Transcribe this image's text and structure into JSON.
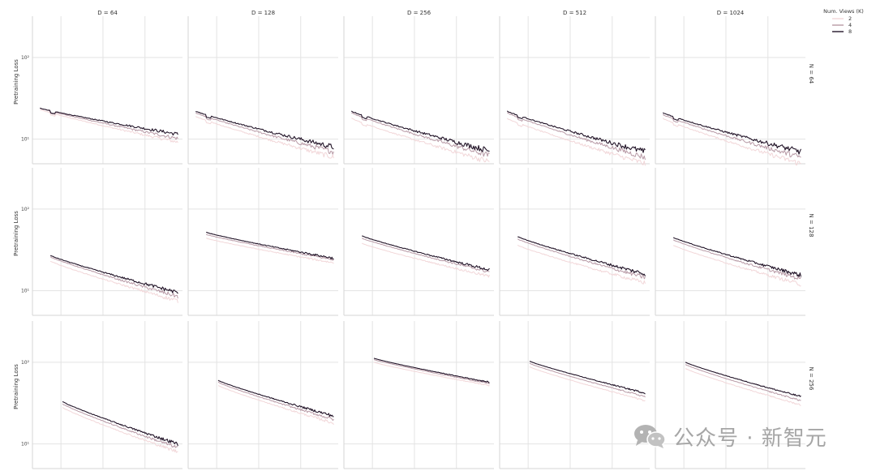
{
  "chart_data": {
    "type": "line",
    "grid": "small multiples",
    "column_titles": [
      "D = 64",
      "D = 128",
      "D = 256",
      "D = 512",
      "D = 1024"
    ],
    "row_titles": [
      "N = 64",
      "N = 128",
      "N = 256"
    ],
    "ylabel": "Pretraining Loss",
    "yscale": "log",
    "ytick_labels": [
      "10¹",
      "10²"
    ],
    "ylim": [
      5,
      320
    ],
    "xlim": [
      0,
      1
    ],
    "legend": {
      "title": "Num. Views (K)",
      "placement": "top-right",
      "entries": [
        {
          "label": "2",
          "color": "#f2d7d9"
        },
        {
          "label": "4",
          "color": "#b89aa6"
        },
        {
          "label": "8",
          "color": "#231529"
        }
      ]
    },
    "panels": [
      {
        "row": 0,
        "col": 0,
        "x_start": 0.05,
        "x_end": 0.97,
        "start": {
          "2": 23,
          "4": 24,
          "8": 24
        },
        "end": {
          "2": 9.2,
          "4": 10.2,
          "8": 11.5
        },
        "noise": 0.06
      },
      {
        "row": 0,
        "col": 1,
        "x_start": 0.05,
        "x_end": 0.97,
        "start": {
          "2": 19,
          "4": 21,
          "8": 22
        },
        "end": {
          "2": 6.0,
          "4": 7.0,
          "8": 8.0
        },
        "noise": 0.09
      },
      {
        "row": 0,
        "col": 2,
        "x_start": 0.05,
        "x_end": 0.97,
        "start": {
          "2": 18,
          "4": 21,
          "8": 22
        },
        "end": {
          "2": 5.3,
          "4": 6.3,
          "8": 7.2
        },
        "noise": 0.1
      },
      {
        "row": 0,
        "col": 3,
        "x_start": 0.05,
        "x_end": 0.97,
        "start": {
          "2": 18,
          "4": 21,
          "8": 22
        },
        "end": {
          "2": 5.0,
          "4": 6.0,
          "8": 7.0
        },
        "noise": 0.1
      },
      {
        "row": 0,
        "col": 4,
        "x_start": 0.05,
        "x_end": 0.97,
        "start": {
          "2": 18,
          "4": 20,
          "8": 21
        },
        "end": {
          "2": 5.0,
          "4": 6.0,
          "8": 7.0
        },
        "noise": 0.1
      },
      {
        "row": 1,
        "col": 0,
        "x_start": 0.12,
        "x_end": 0.97,
        "start": {
          "2": 23,
          "4": 26,
          "8": 27
        },
        "end": {
          "2": 7.5,
          "4": 8.5,
          "8": 9.5
        },
        "noise": 0.07
      },
      {
        "row": 1,
        "col": 1,
        "x_start": 0.12,
        "x_end": 0.97,
        "start": {
          "2": 44,
          "4": 49,
          "8": 52
        },
        "end": {
          "2": 22,
          "4": 24,
          "8": 25
        },
        "noise": 0.04
      },
      {
        "row": 1,
        "col": 2,
        "x_start": 0.12,
        "x_end": 0.97,
        "start": {
          "2": 38,
          "4": 44,
          "8": 47
        },
        "end": {
          "2": 15,
          "4": 17,
          "8": 18
        },
        "noise": 0.05
      },
      {
        "row": 1,
        "col": 3,
        "x_start": 0.12,
        "x_end": 0.97,
        "start": {
          "2": 36,
          "4": 43,
          "8": 46
        },
        "end": {
          "2": 12.5,
          "4": 14.5,
          "8": 16
        },
        "noise": 0.07
      },
      {
        "row": 1,
        "col": 4,
        "x_start": 0.12,
        "x_end": 0.97,
        "start": {
          "2": 36,
          "4": 42,
          "8": 45
        },
        "end": {
          "2": 12,
          "4": 14,
          "8": 15.5
        },
        "noise": 0.07
      },
      {
        "row": 2,
        "col": 0,
        "x_start": 0.2,
        "x_end": 0.97,
        "start": {
          "2": 28,
          "4": 31,
          "8": 33
        },
        "end": {
          "2": 8.0,
          "4": 9.0,
          "8": 10
        },
        "noise": 0.06
      },
      {
        "row": 2,
        "col": 1,
        "x_start": 0.2,
        "x_end": 0.97,
        "start": {
          "2": 52,
          "4": 57,
          "8": 60
        },
        "end": {
          "2": 18,
          "4": 20,
          "8": 22
        },
        "noise": 0.05
      },
      {
        "row": 2,
        "col": 2,
        "x_start": 0.2,
        "x_end": 0.97,
        "start": {
          "2": 100,
          "4": 108,
          "8": 112
        },
        "end": {
          "2": 52,
          "4": 55,
          "8": 57
        },
        "noise": 0.02
      },
      {
        "row": 2,
        "col": 3,
        "x_start": 0.2,
        "x_end": 0.97,
        "start": {
          "2": 88,
          "4": 97,
          "8": 103
        },
        "end": {
          "2": 34,
          "4": 38,
          "8": 42
        },
        "noise": 0.03
      },
      {
        "row": 2,
        "col": 4,
        "x_start": 0.2,
        "x_end": 0.97,
        "start": {
          "2": 84,
          "4": 94,
          "8": 100
        },
        "end": {
          "2": 30,
          "4": 34,
          "8": 38
        },
        "noise": 0.03
      }
    ]
  },
  "watermark": {
    "icon": "wechat-icon",
    "text": "公众号 · 新智元"
  }
}
